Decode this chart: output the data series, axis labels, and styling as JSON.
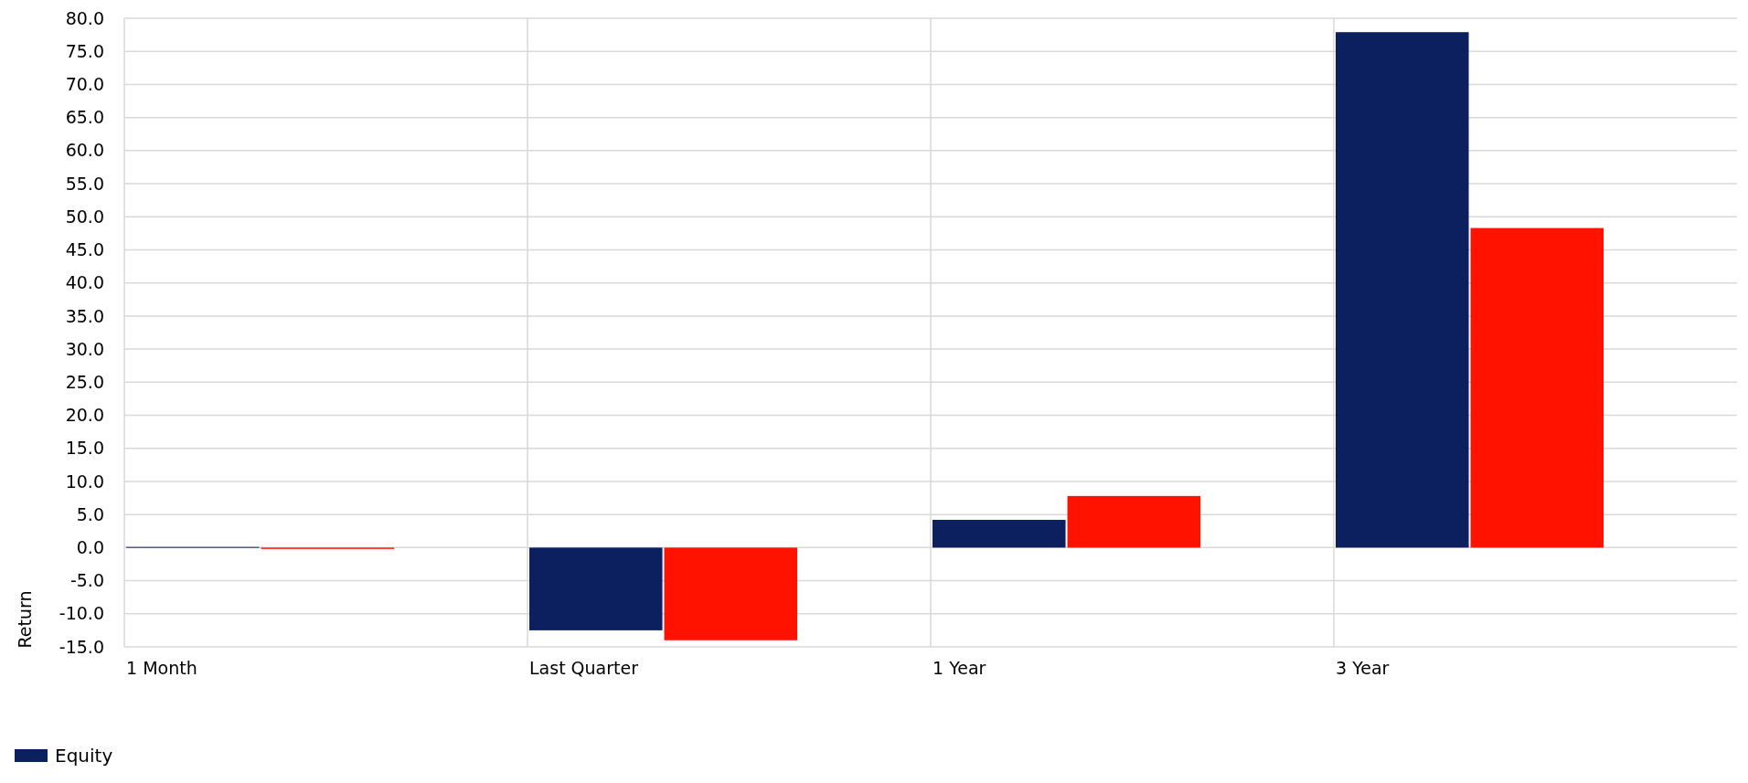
{
  "chart_data": {
    "type": "bar",
    "ylabel": "Return",
    "categories": [
      "1 Month",
      "Last Quarter",
      "1 Year",
      "3 Year"
    ],
    "series": [
      {
        "name": "Equity",
        "color": "#0c1f5e",
        "values": [
          0.1,
          -12.5,
          4.2,
          77.9
        ]
      },
      {
        "color": "#ff1200",
        "values": [
          -0.2,
          -14.0,
          7.8,
          48.3
        ]
      }
    ],
    "ylim": [
      -15,
      80
    ],
    "yticks": [
      {
        "value": -15,
        "label": "-15.0"
      },
      {
        "value": -10,
        "label": "-10.0"
      },
      {
        "value": -5,
        "label": "-5.0"
      },
      {
        "value": 0,
        "label": "0.0"
      },
      {
        "value": 5,
        "label": "5.0"
      },
      {
        "value": 10,
        "label": "10.0"
      },
      {
        "value": 15,
        "label": "15.0"
      },
      {
        "value": 20,
        "label": "20.0"
      },
      {
        "value": 25,
        "label": "25.0"
      },
      {
        "value": 30,
        "label": "30.0"
      },
      {
        "value": 35,
        "label": "35.0"
      },
      {
        "value": 40,
        "label": "40.0"
      },
      {
        "value": 45,
        "label": "45.0"
      },
      {
        "value": 50,
        "label": "50.0"
      },
      {
        "value": 55,
        "label": "55.0"
      },
      {
        "value": 60,
        "label": "60.0"
      },
      {
        "value": 65,
        "label": "65.0"
      },
      {
        "value": 70,
        "label": "70.0"
      },
      {
        "value": 75,
        "label": "75.0"
      },
      {
        "value": 80,
        "label": "80.0"
      }
    ],
    "grid": true,
    "legend": "bottom"
  }
}
